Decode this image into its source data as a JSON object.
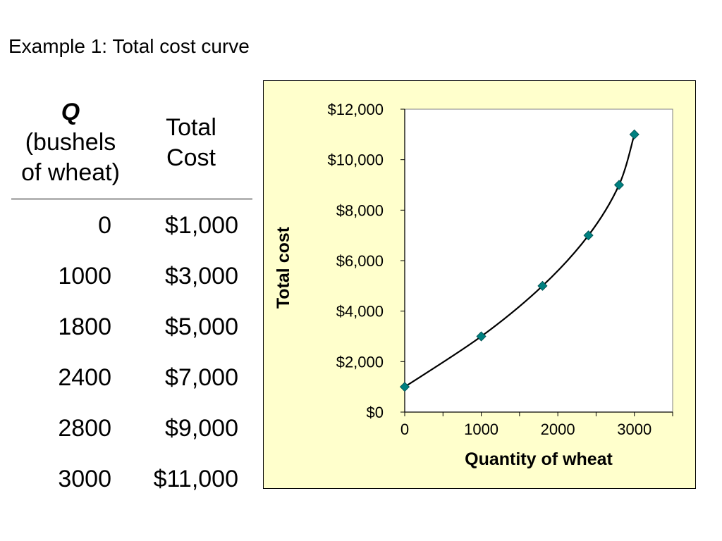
{
  "slide": {
    "title": "Example 1: Total cost curve"
  },
  "table": {
    "header_q_symbol": "Q",
    "header_q_line2": "(bushels",
    "header_q_line3": "of wheat)",
    "header_cost_line1": "Total",
    "header_cost_line2": "Cost",
    "rows": [
      {
        "q": "0",
        "cost": "$1,000"
      },
      {
        "q": "1000",
        "cost": "$3,000"
      },
      {
        "q": "1800",
        "cost": "$5,000"
      },
      {
        "q": "2400",
        "cost": "$7,000"
      },
      {
        "q": "2800",
        "cost": "$9,000"
      },
      {
        "q": "3000",
        "cost": "$11,000"
      }
    ]
  },
  "chart_data": {
    "type": "line",
    "x": [
      0,
      1000,
      1800,
      2400,
      2800,
      3000
    ],
    "series": [
      {
        "values": [
          1000,
          3000,
          5000,
          7000,
          9000,
          11000
        ]
      }
    ],
    "xlabel": "Quantity of wheat",
    "ylabel": "Total cost",
    "xlim": [
      0,
      3500
    ],
    "ylim": [
      0,
      12000
    ],
    "x_ticks": [
      0,
      1000,
      2000,
      3000
    ],
    "x_tick_labels": [
      "0",
      "1000",
      "2000",
      "3000"
    ],
    "y_ticks": [
      0,
      2000,
      4000,
      6000,
      8000,
      10000,
      12000
    ],
    "y_tick_labels": [
      "$0",
      "$2,000",
      "$4,000",
      "$6,000",
      "$8,000",
      "$10,000",
      "$12,000"
    ],
    "grid": false,
    "legend": "none",
    "marker": "diamond",
    "marker_color": "#008080",
    "line_color": "#000000",
    "panel_background": "#ffffcc",
    "plot_background": "#ffffff"
  }
}
